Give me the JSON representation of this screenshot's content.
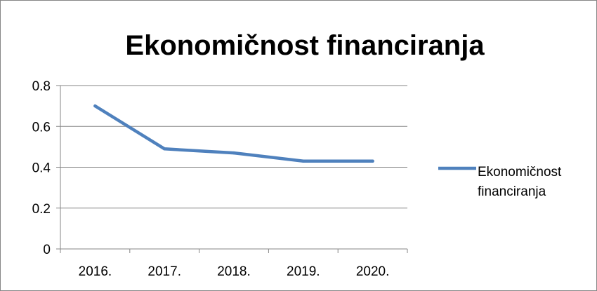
{
  "chart_data": {
    "type": "line",
    "title": "Ekonomičnost financiranja",
    "xlabel": "",
    "ylabel": "",
    "categories": [
      "2016.",
      "2017.",
      "2018.",
      "2019.",
      "2020."
    ],
    "series": [
      {
        "name": "Ekonomičnost financiranja",
        "values": [
          0.7,
          0.49,
          0.47,
          0.43,
          0.43
        ],
        "color": "#4F81BD"
      }
    ],
    "ylim": [
      0,
      0.8
    ],
    "yticks": [
      "0",
      "0.2",
      "0.4",
      "0.6",
      "0.8"
    ],
    "grid": true,
    "legend_position": "right",
    "legend_lines": [
      "Ekonomičnost",
      "financiranja"
    ]
  }
}
